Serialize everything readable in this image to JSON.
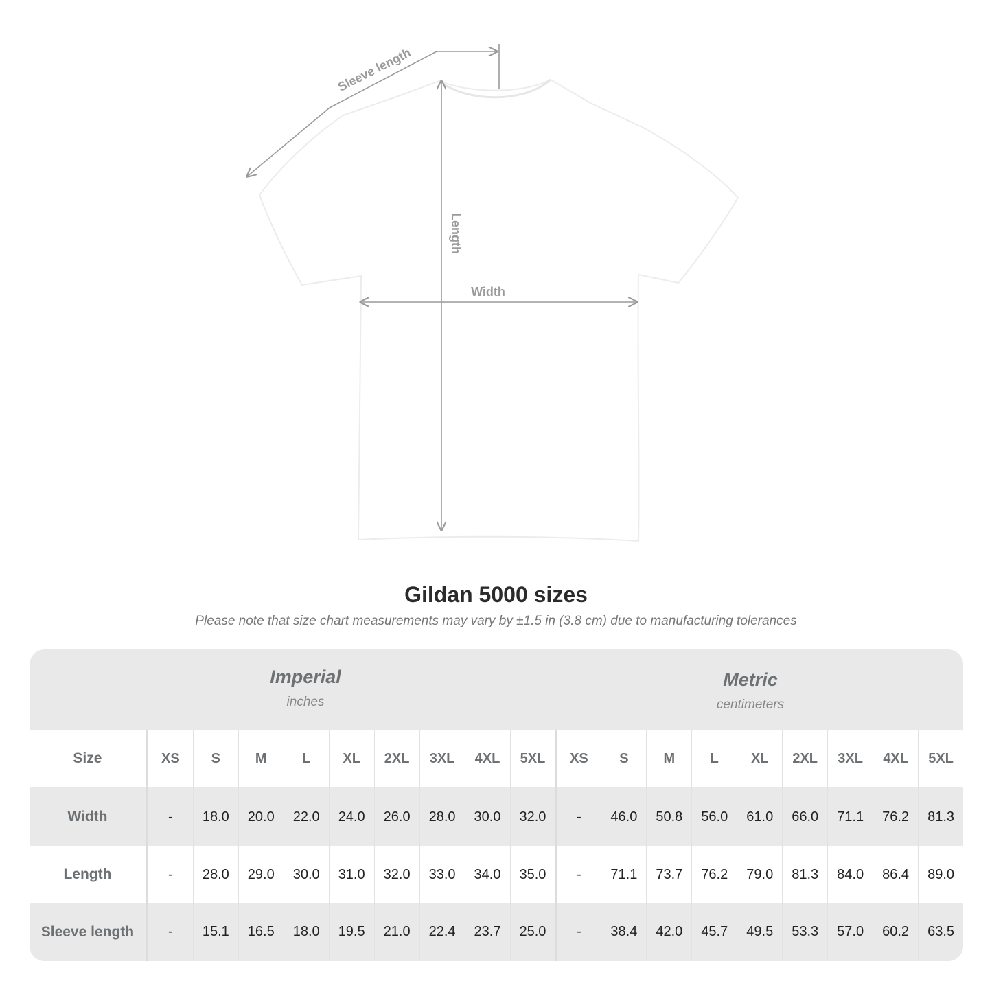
{
  "diagram": {
    "labels": {
      "sleeve": "Sleeve length",
      "length": "Length",
      "width": "Width"
    },
    "colors": {
      "line": "#9a9a9a",
      "shirt": "#ffffff",
      "table_gray": "#e9e9e9"
    }
  },
  "title": "Gildan 5000 sizes",
  "note": "Please note that size chart measurements may vary by ±1.5 in (3.8 cm) due to manufacturing tolerances",
  "imperial": {
    "name": "Imperial",
    "unit": "inches"
  },
  "metric": {
    "name": "Metric",
    "unit": "centimeters"
  },
  "size_label": "Size",
  "sizes": [
    "XS",
    "S",
    "M",
    "L",
    "XL",
    "2XL",
    "3XL",
    "4XL",
    "5XL"
  ],
  "rows": [
    {
      "label": "Width",
      "imperial": [
        "-",
        "18.0",
        "20.0",
        "22.0",
        "24.0",
        "26.0",
        "28.0",
        "30.0",
        "32.0"
      ],
      "metric": [
        "-",
        "46.0",
        "50.8",
        "56.0",
        "61.0",
        "66.0",
        "71.1",
        "76.2",
        "81.3"
      ]
    },
    {
      "label": "Length",
      "imperial": [
        "-",
        "28.0",
        "29.0",
        "30.0",
        "31.0",
        "32.0",
        "33.0",
        "34.0",
        "35.0"
      ],
      "metric": [
        "-",
        "71.1",
        "73.7",
        "76.2",
        "79.0",
        "81.3",
        "84.0",
        "86.4",
        "89.0"
      ]
    },
    {
      "label": "Sleeve length",
      "imperial": [
        "-",
        "15.1",
        "16.5",
        "18.0",
        "19.5",
        "21.0",
        "22.4",
        "23.7",
        "25.0"
      ],
      "metric": [
        "-",
        "38.4",
        "42.0",
        "45.7",
        "49.5",
        "53.3",
        "57.0",
        "60.2",
        "63.5"
      ]
    }
  ]
}
